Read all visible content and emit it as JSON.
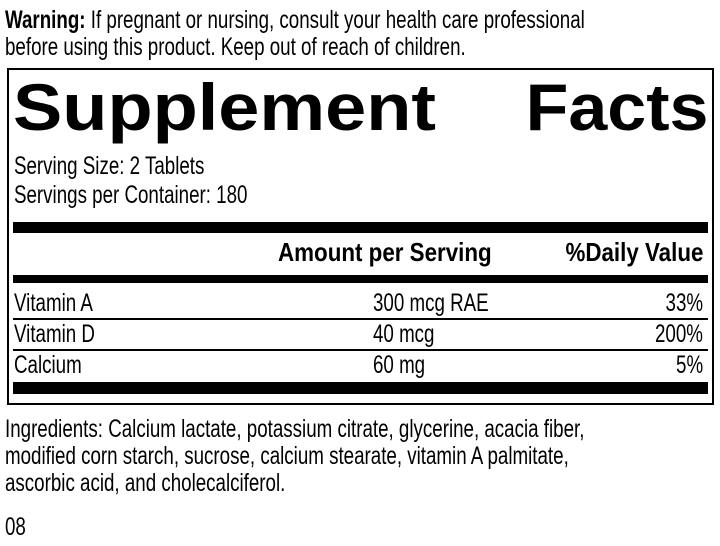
{
  "warning": {
    "label": "Warning:",
    "line1_rest": "If pregnant or nursing, consult your health care professional",
    "line2": "before using this product. Keep out of reach of children."
  },
  "panel": {
    "title_left": "Supplement",
    "title_right": "Facts",
    "serving_size": "Serving Size: 2 Tablets",
    "servings_per_container": "Servings per Container: 180",
    "header": {
      "amount": "Amount per Serving",
      "daily_value": "%Daily Value"
    },
    "rows": [
      {
        "name": "Vitamin A",
        "amount": "300 mcg RAE",
        "dv": "33%"
      },
      {
        "name": "Vitamin D",
        "amount": "40 mcg",
        "dv": "200%"
      },
      {
        "name": "Calcium",
        "amount": "60 mg",
        "dv": "5%"
      }
    ]
  },
  "ingredients": {
    "lines": [
      "Ingredients: Calcium lactate, potassium citrate, glycerine, acacia fiber,",
      "modified corn starch, sucrose, calcium stearate, vitamin A palmitate,",
      "ascorbic acid, and cholecalciferol."
    ]
  },
  "footer": {
    "code": "08"
  },
  "colors": {
    "ink": "#000000",
    "background": "#ffffff"
  }
}
